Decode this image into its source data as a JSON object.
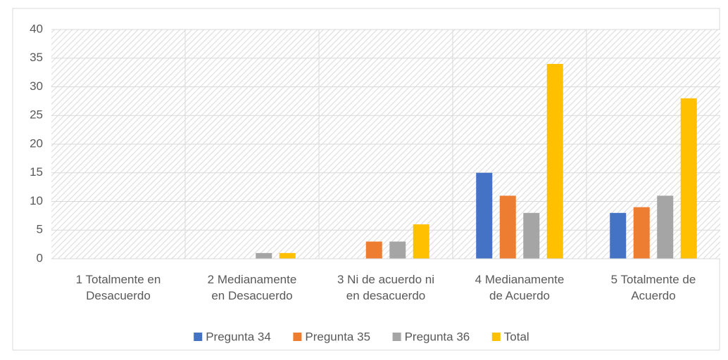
{
  "chart_data": {
    "type": "bar",
    "categories": [
      "1 Totalmente en\nDesacuerdo",
      "2 Medianamente\nen Desacuerdo",
      "3 Ni de acuerdo ni\nen desacuerdo",
      "4 Medianamente\nde Acuerdo",
      "5 Totalmente de\nAcuerdo"
    ],
    "series": [
      {
        "name": "Pregunta 34",
        "color": "#4472c4",
        "values": [
          0,
          0,
          0,
          15,
          8
        ]
      },
      {
        "name": "Pregunta 35",
        "color": "#ed7d31",
        "values": [
          0,
          0,
          3,
          11,
          9
        ]
      },
      {
        "name": "Pregunta 36",
        "color": "#a5a5a5",
        "values": [
          0,
          1,
          3,
          8,
          11
        ]
      },
      {
        "name": "Total",
        "color": "#ffc000",
        "values": [
          0,
          1,
          6,
          34,
          28
        ]
      }
    ],
    "ylim": [
      0,
      40
    ],
    "yticks": [
      0,
      5,
      10,
      15,
      20,
      25,
      30,
      35,
      40
    ],
    "grid": true,
    "legend": "bottom"
  }
}
